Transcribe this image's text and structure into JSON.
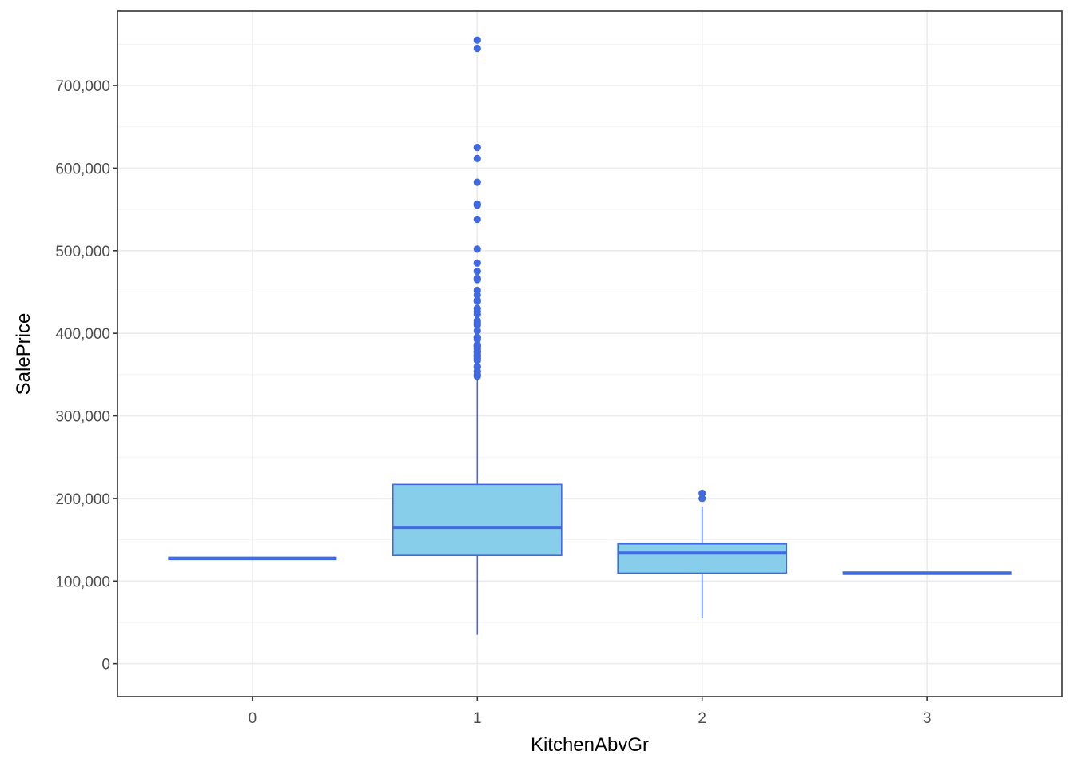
{
  "chart_data": {
    "type": "boxplot",
    "xlabel": "KitchenAbvGr",
    "ylabel": "SalePrice",
    "categories": [
      "0",
      "1",
      "2",
      "3"
    ],
    "ylim": [
      0,
      760000
    ],
    "yticks": [
      0,
      100000,
      200000,
      300000,
      400000,
      500000,
      600000,
      700000
    ],
    "ytick_labels": [
      "0",
      "100,000",
      "200,000",
      "300,000",
      "400,000",
      "500,000",
      "600,000",
      "700,000"
    ],
    "grid": true,
    "boxes": [
      {
        "category": "0",
        "min": 127500,
        "q1": 127500,
        "median": 127500,
        "q3": 127500,
        "max": 127500,
        "outliers": []
      },
      {
        "category": "1",
        "min": 34900,
        "q1": 131000,
        "median": 165000,
        "q3": 217000,
        "max": 348000,
        "outliers": [
          755000,
          745000,
          625000,
          611657,
          582933,
          556581,
          555000,
          538000,
          501837,
          485000,
          475000,
          466500,
          465000,
          451950,
          446261,
          440000,
          438780,
          430000,
          426000,
          423000,
          415298,
          412500,
          410000,
          403000,
          395192,
          395000,
          392500,
          386250,
          385000,
          383970,
          381000,
          378500,
          377500,
          377426,
          375000,
          372500,
          372402,
          369900,
          368000,
          367294,
          360000,
          359100,
          354000,
          350000,
          348000
        ]
      },
      {
        "category": "2",
        "min": 55000,
        "q1": 109500,
        "median": 133900,
        "q3": 145000,
        "max": 190000,
        "outliers": [
          206300,
          200000
        ]
      },
      {
        "category": "3",
        "min": 106000,
        "q1": 108750,
        "median": 109500,
        "q3": 110500,
        "max": 113000,
        "outliers": []
      }
    ],
    "colors": {
      "box_fill": "#87ceeb",
      "box_line": "#4169e1",
      "outlier": "#4169e1",
      "grid_major": "#ebebeb",
      "grid_minor": "#f2f2f2",
      "panel_border": "#333333"
    }
  }
}
